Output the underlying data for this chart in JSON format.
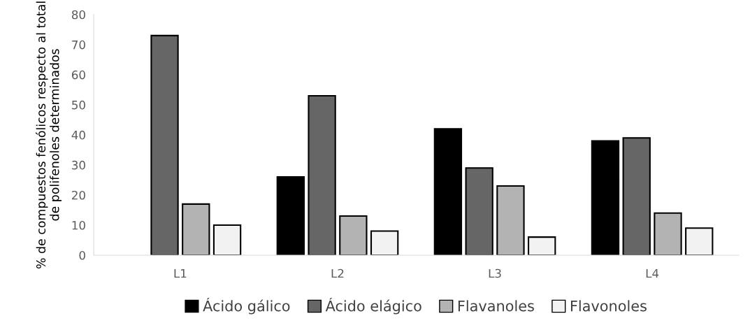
{
  "chart_data": {
    "type": "bar",
    "ylabel": "% de compuestos fenólicos respecto al total de polifenoles determinados",
    "categories": [
      "L1",
      "L2",
      "L3",
      "L4"
    ],
    "series": [
      {
        "name": "Ácido gálico",
        "color": "#000000",
        "values": [
          0,
          26,
          42,
          38
        ]
      },
      {
        "name": "Ácido elágico",
        "color": "#666666",
        "values": [
          73,
          53,
          29,
          39
        ]
      },
      {
        "name": "Flavanoles",
        "color": "#b3b3b3",
        "values": [
          17,
          13,
          23,
          14
        ]
      },
      {
        "name": "Flavonoles",
        "color": "#f2f2f2",
        "values": [
          10,
          8,
          6,
          9
        ]
      }
    ],
    "ylim": [
      0,
      80
    ],
    "yticks": [
      0,
      10,
      20,
      30,
      40,
      50,
      60,
      70,
      80
    ],
    "grid": false,
    "legend": "bottom"
  }
}
